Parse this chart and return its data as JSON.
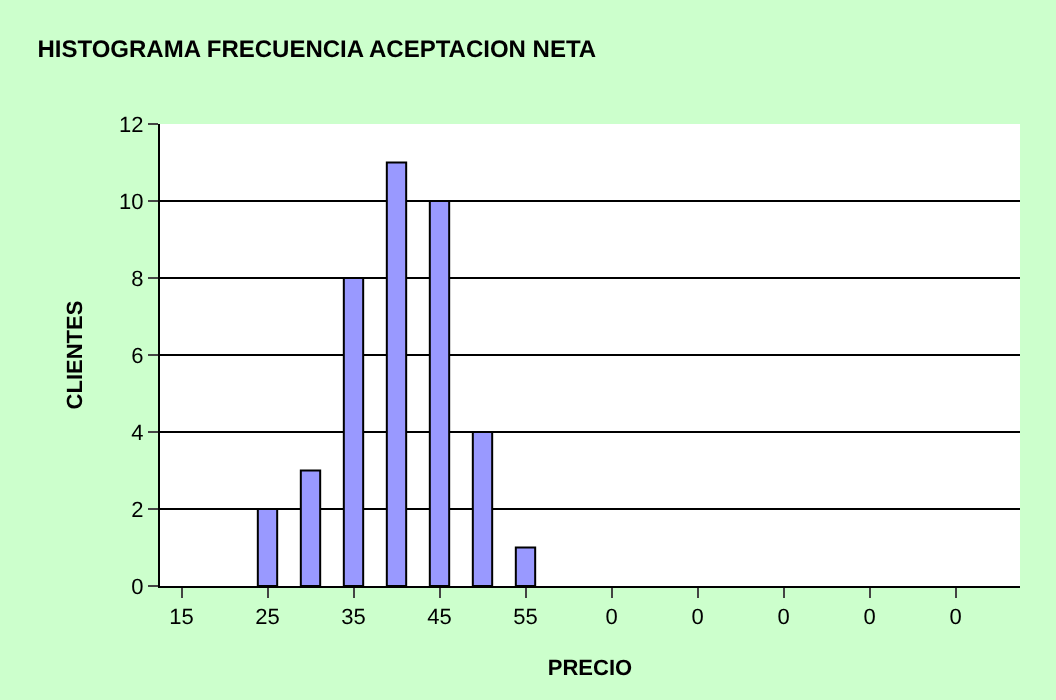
{
  "chart_data": {
    "type": "bar",
    "title": "HISTOGRAMA FRECUENCIA ACEPTACION NETA",
    "xlabel": "PRECIO",
    "ylabel": "CLIENTES",
    "categories": [
      "15",
      null,
      "25",
      null,
      "35",
      null,
      "45",
      null,
      "55",
      null,
      "0",
      null,
      "0",
      null,
      "0",
      null,
      "0",
      null,
      "0",
      null
    ],
    "values": [
      0,
      0,
      2,
      3,
      8,
      11,
      10,
      4,
      1,
      0,
      0,
      0,
      0,
      0,
      0,
      0,
      0,
      0,
      0,
      0
    ],
    "color": "#9999ff",
    "ylim": [
      0,
      12
    ],
    "yticks": [
      0,
      2,
      4,
      6,
      8,
      10,
      12
    ],
    "grid": "y"
  }
}
